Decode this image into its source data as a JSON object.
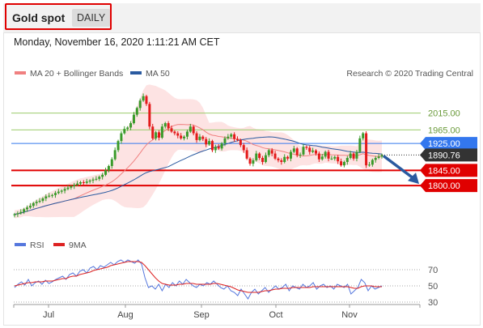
{
  "header": {
    "title": "Gold spot",
    "timeframe": "DAILY",
    "datetime": "Monday, November 16, 2020 1:11:21 AM CET"
  },
  "legend": {
    "bollinger": "MA 20 + Bollinger Bands",
    "ma50": "MA 50",
    "credit": "Research © 2020 Trading Central",
    "rsi": "RSI",
    "rsi_ma": "9MA"
  },
  "colors": {
    "up_candle": "#3a9a2a",
    "down_candle": "#e31a1a",
    "bollinger": "#f08080",
    "band_fill": "#fde3e3",
    "ma50": "#2a5aa0",
    "rsi": "#5577dd",
    "rsi_ma": "#dd2222",
    "pivot_blue": "#3377ee",
    "support_red": "#e00000",
    "resistance_green": "#9ccc6c",
    "arrow": "#2a5aa0"
  },
  "chart_data": [
    {
      "type": "candlestick",
      "ylim": [
        1690,
        2110
      ],
      "x_ticks": [
        "Jul",
        "Aug",
        "Sep",
        "Oct",
        "Nov"
      ],
      "levels": [
        {
          "value": 2015.0,
          "label": "2015.00",
          "kind": "resistance"
        },
        {
          "value": 1965.0,
          "label": "1965.00",
          "kind": "resistance"
        },
        {
          "value": 1925.0,
          "label": "1925.00",
          "kind": "pivot"
        },
        {
          "value": 1845.0,
          "label": "1845.00",
          "kind": "support"
        },
        {
          "value": 1800.0,
          "label": "1800.00",
          "kind": "support"
        }
      ],
      "last_price": {
        "value": 1890.76,
        "label": "1890.76"
      },
      "forecast": {
        "from": 1888,
        "to": 1800
      },
      "close_series": [
        1715,
        1718,
        1722,
        1730,
        1735,
        1740,
        1748,
        1752,
        1755,
        1762,
        1768,
        1770,
        1772,
        1778,
        1782,
        1785,
        1790,
        1794,
        1798,
        1802,
        1806,
        1810,
        1808,
        1812,
        1815,
        1818,
        1820,
        1826,
        1832,
        1845,
        1858,
        1878,
        1905,
        1932,
        1955,
        1968,
        1972,
        1985,
        2010,
        2030,
        2052,
        2065,
        2042,
        1975,
        1940,
        1958,
        1942,
        1975,
        1985,
        1970,
        1960,
        1955,
        1948,
        1940,
        1945,
        1960,
        1975,
        1955,
        1935,
        1945,
        1938,
        1922,
        1932,
        1905,
        1915,
        1910,
        1925,
        1940,
        1945,
        1952,
        1938,
        1935,
        1920,
        1905,
        1880,
        1865,
        1875,
        1895,
        1882,
        1870,
        1890,
        1905,
        1895,
        1880,
        1875,
        1870,
        1885,
        1880,
        1900,
        1910,
        1890,
        1892,
        1915,
        1912,
        1900,
        1904,
        1895,
        1878,
        1886,
        1900,
        1880,
        1880,
        1885,
        1872,
        1860,
        1870,
        1882,
        1895,
        1880,
        1900,
        1940,
        1955,
        1860,
        1862,
        1876,
        1882,
        1886,
        1890.76
      ]
    },
    {
      "type": "line",
      "ylim": [
        25,
        85
      ],
      "y_ticks": [
        70,
        50,
        30
      ],
      "series": [
        {
          "name": "RSI",
          "values": [
            48,
            52,
            55,
            51,
            58,
            50,
            54,
            56,
            52,
            57,
            53,
            55,
            58,
            60,
            62,
            58,
            64,
            66,
            62,
            68,
            70,
            66,
            72,
            74,
            70,
            75,
            73,
            76,
            79,
            76,
            80,
            82,
            79,
            82,
            80,
            78,
            82,
            77,
            60,
            48,
            50,
            46,
            52,
            44,
            52,
            48,
            54,
            50,
            56,
            52,
            58,
            54,
            50,
            48,
            52,
            50,
            54,
            52,
            56,
            52,
            48,
            46,
            50,
            44,
            42,
            38,
            46,
            40,
            34,
            42,
            46,
            40,
            44,
            48,
            42,
            46,
            50,
            46,
            48,
            52,
            44,
            50,
            48,
            46,
            52,
            48,
            50,
            54,
            46,
            50,
            52,
            48,
            50,
            46,
            52,
            50,
            48,
            52,
            40,
            44,
            48,
            58,
            54,
            44,
            50,
            46,
            48,
            50
          ]
        },
        {
          "name": "9MA",
          "values": [
            50,
            51,
            52,
            53,
            54,
            54,
            55,
            55,
            55,
            56,
            56,
            56,
            57,
            58,
            59,
            59,
            61,
            62,
            62,
            64,
            65,
            66,
            67,
            69,
            70,
            71,
            72,
            73,
            75,
            76,
            77,
            78,
            79,
            80,
            80,
            80,
            80,
            79,
            75,
            70,
            65,
            60,
            56,
            53,
            52,
            51,
            51,
            51,
            52,
            52,
            53,
            53,
            53,
            52,
            52,
            52,
            52,
            52,
            53,
            53,
            52,
            51,
            50,
            49,
            47,
            45,
            44,
            43,
            42,
            42,
            42,
            42,
            43,
            44,
            44,
            45,
            46,
            46,
            47,
            47,
            47,
            48,
            48,
            48,
            48,
            48,
            48,
            49,
            49,
            49,
            49,
            49,
            49,
            49,
            49,
            49,
            49,
            49,
            48,
            47,
            47,
            49,
            50,
            50,
            50,
            49,
            49,
            49
          ]
        }
      ]
    }
  ]
}
